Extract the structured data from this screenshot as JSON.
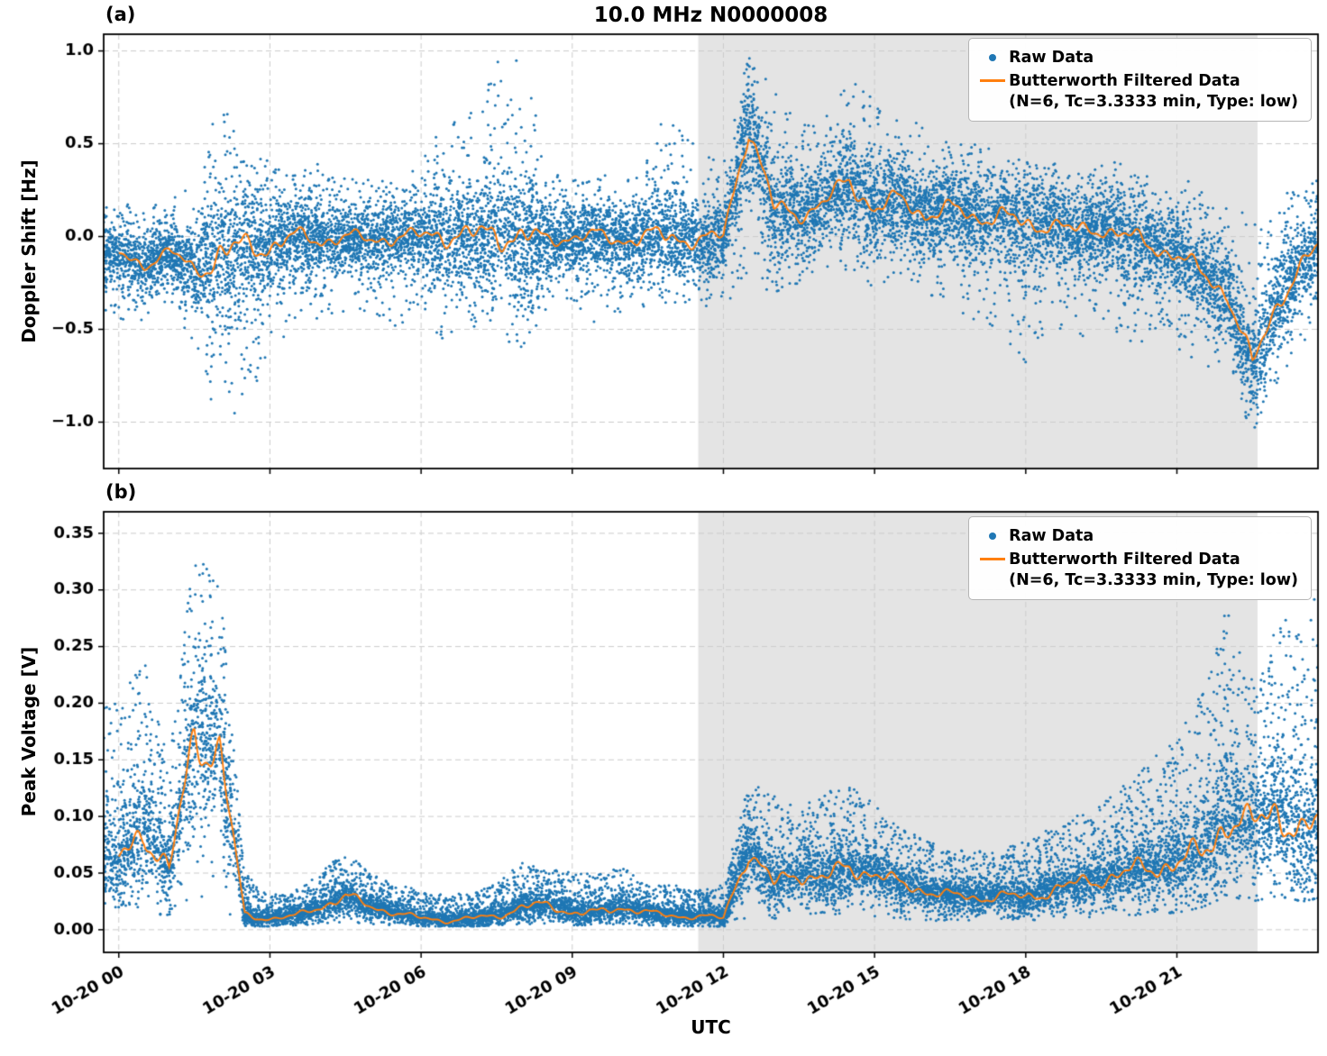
{
  "title": "10.0 MHz N0000008",
  "panel_labels": {
    "a": "(a)",
    "b": "(b)"
  },
  "legend": {
    "raw": "Raw Data",
    "filtered_line1": "Butterworth Filtered Data",
    "filtered_line2": "(N=6, Tc=3.3333 min, Type: low)"
  },
  "colors": {
    "raw": "#1f77b4",
    "filtered": "#ff7f0e",
    "shade": "#e4e4e4",
    "grid": "#cccccc",
    "axis": "#000000",
    "background": "#ffffff"
  },
  "x_axis": {
    "label": "UTC",
    "lim": [
      -0.3,
      23.8
    ],
    "ticks": [
      0,
      3,
      6,
      9,
      12,
      15,
      18,
      21
    ],
    "tick_labels": [
      "10-20 00",
      "10-20 03",
      "10-20 06",
      "10-20 09",
      "10-20 12",
      "10-20 15",
      "10-20 18",
      "10-20 21"
    ]
  },
  "shaded_region_hours": [
    11.5,
    22.6
  ],
  "chart_data": [
    {
      "type": "scatter",
      "panel_label": "(a)",
      "ylabel": "Doppler Shift [Hz]",
      "ylim": [
        -1.25,
        1.09
      ],
      "yticks": [
        -1.0,
        -0.5,
        0.0,
        0.5,
        1.0
      ],
      "ytick_labels": [
        "−1.0",
        "−0.5",
        "0.0",
        "0.5",
        "1.0"
      ],
      "grid": true,
      "legend_position": "upper right",
      "x_hours": [
        0,
        0.5,
        1,
        1.5,
        2,
        2.5,
        3,
        3.5,
        4,
        4.5,
        5,
        5.5,
        6,
        6.5,
        7,
        7.5,
        8,
        8.5,
        9,
        9.5,
        10,
        10.5,
        11,
        11.5,
        12,
        12.5,
        13,
        13.5,
        14,
        14.5,
        15,
        15.5,
        16,
        16.5,
        17,
        17.5,
        18,
        18.5,
        19,
        19.5,
        20,
        20.5,
        21,
        21.5,
        22,
        22.5,
        23,
        23.5,
        24
      ],
      "series": [
        {
          "name": "Raw Data",
          "type": "scatter",
          "envelope_low": [
            -0.45,
            -0.5,
            -0.35,
            -0.6,
            -1.15,
            -0.9,
            -0.7,
            -0.5,
            -0.45,
            -0.4,
            -0.4,
            -0.5,
            -0.4,
            -0.6,
            -0.5,
            -0.55,
            -0.6,
            -0.4,
            -0.35,
            -0.5,
            -0.4,
            -0.4,
            -0.35,
            -0.4,
            -0.35,
            -0.3,
            -0.3,
            -0.25,
            -0.2,
            -0.2,
            -0.3,
            -0.25,
            -0.3,
            -0.4,
            -0.45,
            -0.5,
            -0.75,
            -0.5,
            -0.55,
            -0.5,
            -0.6,
            -0.55,
            -0.6,
            -0.7,
            -0.75,
            -1.05,
            -0.8,
            -0.6,
            -0.5
          ],
          "envelope_high": [
            0.2,
            0.15,
            0.2,
            0.3,
            0.75,
            0.5,
            0.4,
            0.35,
            0.4,
            0.35,
            0.3,
            0.3,
            0.4,
            0.65,
            0.7,
            0.95,
            0.98,
            0.4,
            0.3,
            0.35,
            0.3,
            0.55,
            0.7,
            0.45,
            0.4,
            0.98,
            0.8,
            0.6,
            0.65,
            0.9,
            0.75,
            0.7,
            0.6,
            0.5,
            0.5,
            0.45,
            0.4,
            0.4,
            0.35,
            0.4,
            0.4,
            0.35,
            0.3,
            0.3,
            0.25,
            0.1,
            0.2,
            0.3,
            0.35
          ]
        },
        {
          "name": "Butterworth Filtered Data (N=6, Tc=3.3333 min, Type: low)",
          "type": "line",
          "values": [
            -0.1,
            -0.15,
            -0.08,
            -0.18,
            -0.1,
            -0.06,
            -0.05,
            0.0,
            -0.02,
            0.0,
            -0.02,
            0.0,
            0.0,
            0.02,
            0.0,
            0.02,
            0.0,
            -0.02,
            0.0,
            0.0,
            -0.02,
            0.0,
            0.0,
            -0.02,
            0.0,
            0.6,
            0.15,
            0.12,
            0.18,
            0.3,
            0.15,
            0.2,
            0.12,
            0.15,
            0.1,
            0.12,
            0.05,
            0.08,
            0.02,
            0.05,
            0.0,
            -0.05,
            -0.1,
            -0.2,
            -0.3,
            -0.7,
            -0.35,
            -0.15,
            0.0
          ]
        }
      ]
    },
    {
      "type": "scatter",
      "panel_label": "(b)",
      "ylabel": "Peak Voltage [V]",
      "ylim": [
        -0.02,
        0.369
      ],
      "yticks": [
        0.0,
        0.05,
        0.1,
        0.15,
        0.2,
        0.25,
        0.3,
        0.35
      ],
      "ytick_labels": [
        "0.00",
        "0.05",
        "0.10",
        "0.15",
        "0.20",
        "0.25",
        "0.30",
        "0.35"
      ],
      "grid": true,
      "legend_position": "upper right",
      "x_hours": [
        0,
        0.5,
        1,
        1.5,
        2,
        2.5,
        3,
        3.5,
        4,
        4.5,
        5,
        5.5,
        6,
        6.5,
        7,
        7.5,
        8,
        8.5,
        9,
        9.5,
        10,
        10.5,
        11,
        11.5,
        12,
        12.5,
        13,
        13.5,
        14,
        14.5,
        15,
        15.5,
        16,
        16.5,
        17,
        17.5,
        18,
        18.5,
        19,
        19.5,
        20,
        20.5,
        21,
        21.5,
        22,
        22.5,
        23,
        23.5,
        24
      ],
      "series": [
        {
          "name": "Raw Data",
          "type": "scatter",
          "envelope_low": [
            0.02,
            0.02,
            0.01,
            0.03,
            0.02,
            0.003,
            0.003,
            0.004,
            0.005,
            0.005,
            0.004,
            0.004,
            0.003,
            0.003,
            0.003,
            0.004,
            0.005,
            0.005,
            0.004,
            0.004,
            0.004,
            0.004,
            0.003,
            0.003,
            0.003,
            0.01,
            0.01,
            0.012,
            0.012,
            0.015,
            0.012,
            0.01,
            0.008,
            0.008,
            0.008,
            0.008,
            0.008,
            0.01,
            0.01,
            0.012,
            0.012,
            0.015,
            0.015,
            0.02,
            0.03,
            0.025,
            0.03,
            0.025,
            0.03
          ],
          "envelope_high": [
            0.2,
            0.24,
            0.15,
            0.345,
            0.31,
            0.05,
            0.03,
            0.035,
            0.05,
            0.07,
            0.05,
            0.04,
            0.035,
            0.03,
            0.035,
            0.04,
            0.06,
            0.055,
            0.05,
            0.05,
            0.055,
            0.04,
            0.04,
            0.035,
            0.04,
            0.13,
            0.12,
            0.11,
            0.12,
            0.13,
            0.11,
            0.09,
            0.08,
            0.07,
            0.07,
            0.07,
            0.08,
            0.09,
            0.1,
            0.11,
            0.13,
            0.15,
            0.17,
            0.21,
            0.29,
            0.22,
            0.28,
            0.26,
            0.33
          ]
        },
        {
          "name": "Butterworth Filtered Data (N=6, Tc=3.3333 min, Type: low)",
          "type": "line",
          "values": [
            0.06,
            0.09,
            0.05,
            0.17,
            0.16,
            0.012,
            0.01,
            0.012,
            0.02,
            0.03,
            0.02,
            0.015,
            0.01,
            0.008,
            0.01,
            0.012,
            0.02,
            0.022,
            0.015,
            0.015,
            0.02,
            0.015,
            0.012,
            0.012,
            0.01,
            0.07,
            0.04,
            0.05,
            0.045,
            0.055,
            0.05,
            0.04,
            0.035,
            0.03,
            0.028,
            0.03,
            0.028,
            0.035,
            0.04,
            0.045,
            0.05,
            0.055,
            0.06,
            0.065,
            0.1,
            0.09,
            0.11,
            0.08,
            0.1
          ]
        }
      ]
    }
  ]
}
